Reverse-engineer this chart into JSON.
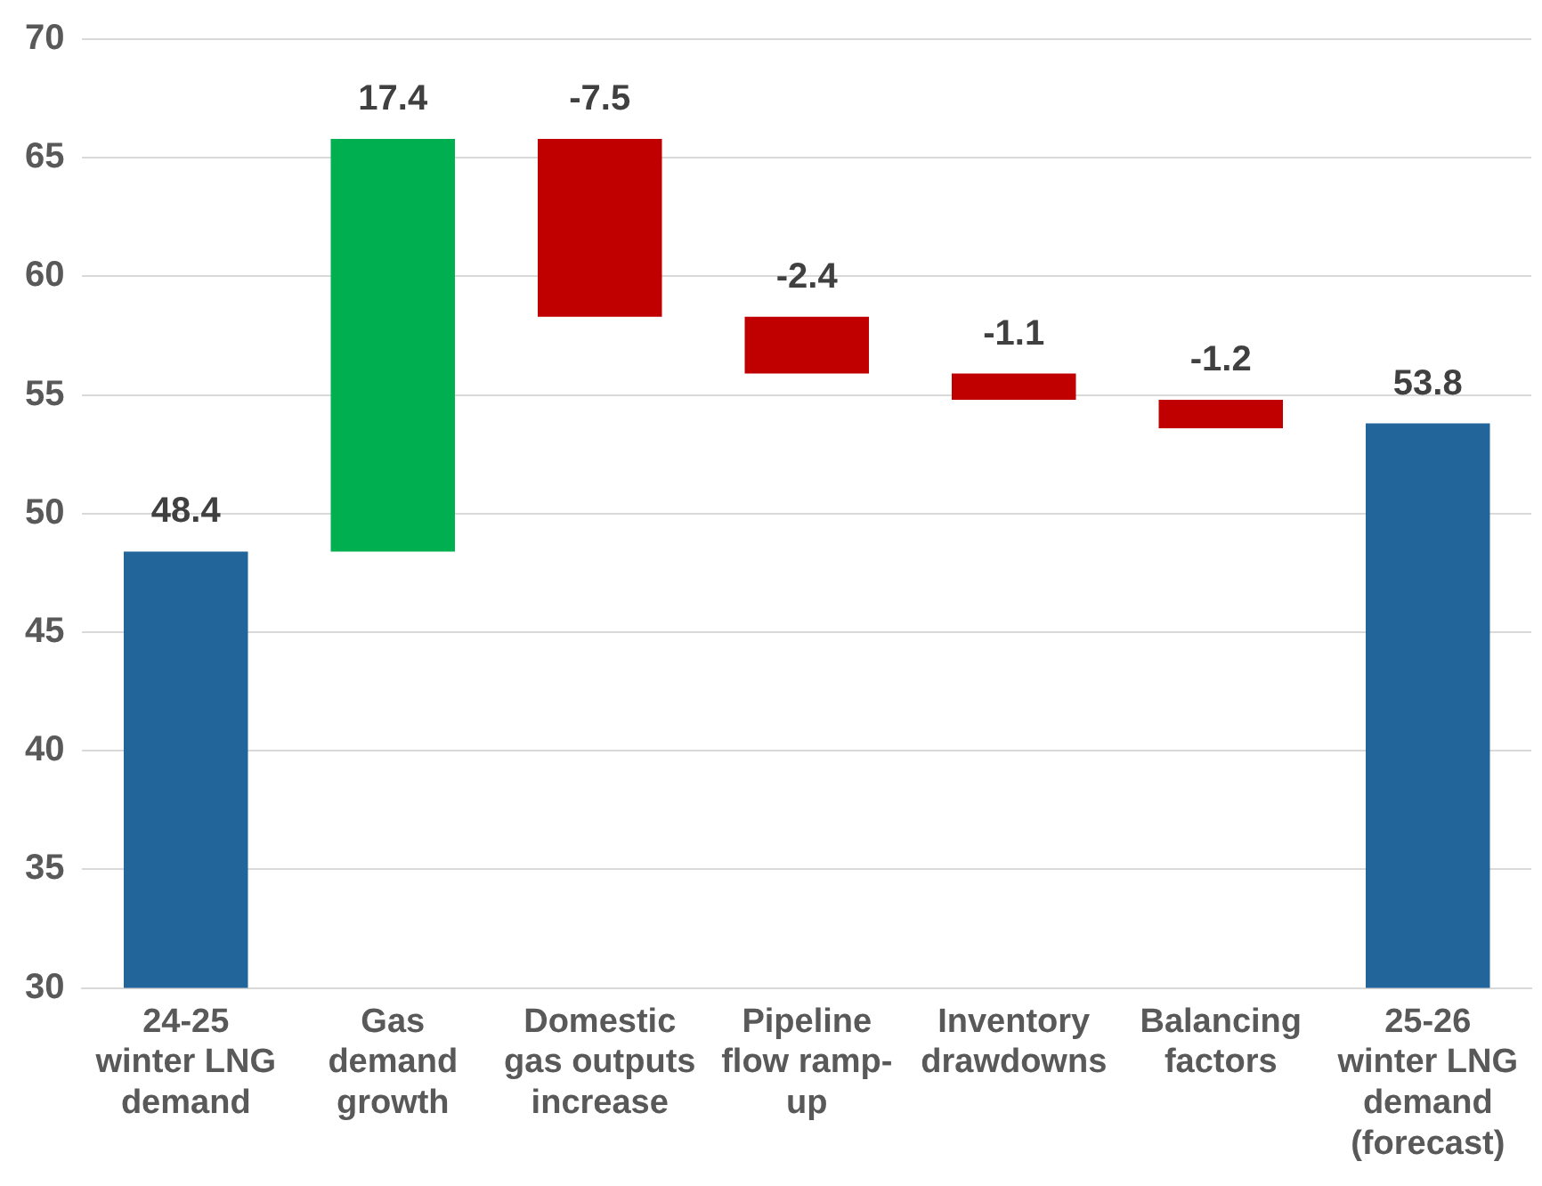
{
  "chart_data": {
    "type": "bar",
    "categories": [
      "24-25\nwinter LNG\ndemand",
      "Gas\ndemand\ngrowth",
      "Domestic\ngas outputs\nincrease",
      "Pipeline\nflow ramp-\nup",
      "Inventory\ndrawdowns",
      "Balancing\nfactors",
      "25-26\nwinter LNG\ndemand\n(forecast)"
    ],
    "values": [
      48.4,
      17.4,
      -7.5,
      -2.4,
      -1.1,
      -1.2,
      53.8
    ],
    "base": [
      0,
      48.4,
      65.8,
      58.3,
      55.9,
      54.8,
      0
    ],
    "colors": [
      "#22659b",
      "#00b050",
      "#c00000",
      "#c00000",
      "#c00000",
      "#c00000",
      "#22659b"
    ],
    "data_labels": true,
    "ylim": [
      30,
      70
    ],
    "yticks": [
      30,
      35,
      40,
      45,
      50,
      55,
      60,
      65,
      70
    ],
    "grid": "y",
    "legend": false
  }
}
